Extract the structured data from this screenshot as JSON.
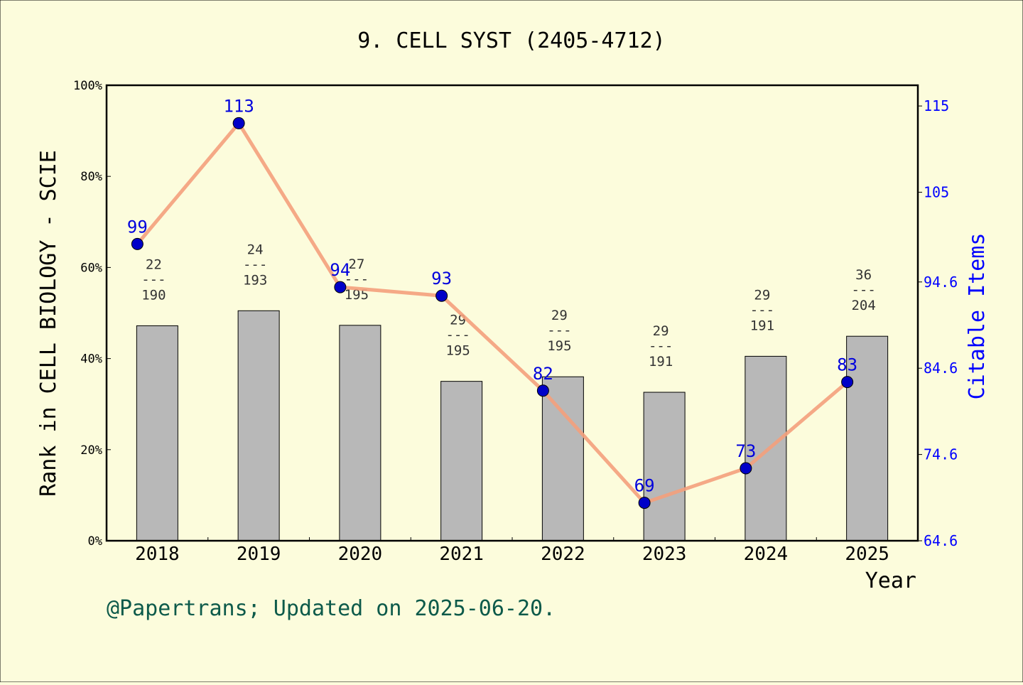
{
  "colors": {
    "background": "#fcfcdc",
    "bar_fill": "#b8b8b8",
    "bar_stroke": "#000000",
    "line": "#f4a07c",
    "point": "#0000c8",
    "point_label": "#0000dd",
    "right_axis": "#0000ff",
    "rank_label": "#333333",
    "footer": "#0d5a4a"
  },
  "footer_text": "@Papertrans; Updated on 2025-06-20.",
  "chart_data": {
    "type": "bar",
    "title": "9. CELL SYST (2405-4712)",
    "xlabel": "Year",
    "ylabel": "Rank in CELL BIOLOGY - SCIE",
    "y2label": "Citable Items",
    "categories": [
      "2018",
      "2019",
      "2020",
      "2021",
      "2022",
      "2023",
      "2024",
      "2025"
    ],
    "ylim": [
      0,
      100
    ],
    "yticks": [
      0,
      20,
      40,
      60,
      80,
      100
    ],
    "ytick_labels": [
      "0%",
      "20%",
      "40%",
      "60%",
      "80%",
      "100%"
    ],
    "y2lim": [
      64.6,
      117.4
    ],
    "y2ticks": [
      64.6,
      74.6,
      84.6,
      94.6,
      105,
      115
    ],
    "y2tick_labels": [
      "64.6",
      "74.6",
      "84.6",
      "94.6",
      "105",
      "115"
    ],
    "series": [
      {
        "type": "bar",
        "axis": "left",
        "values": [
          47.2,
          50.5,
          47.3,
          35.0,
          36.0,
          32.6,
          40.5,
          44.9
        ],
        "rank": [
          22,
          24,
          27,
          29,
          29,
          29,
          29,
          36
        ],
        "total": [
          190,
          193,
          195,
          195,
          195,
          191,
          191,
          204
        ],
        "separator": "---"
      },
      {
        "type": "line",
        "axis": "right",
        "values": [
          99,
          113,
          94,
          93,
          82,
          69,
          73,
          83
        ]
      }
    ],
    "grid": false
  }
}
